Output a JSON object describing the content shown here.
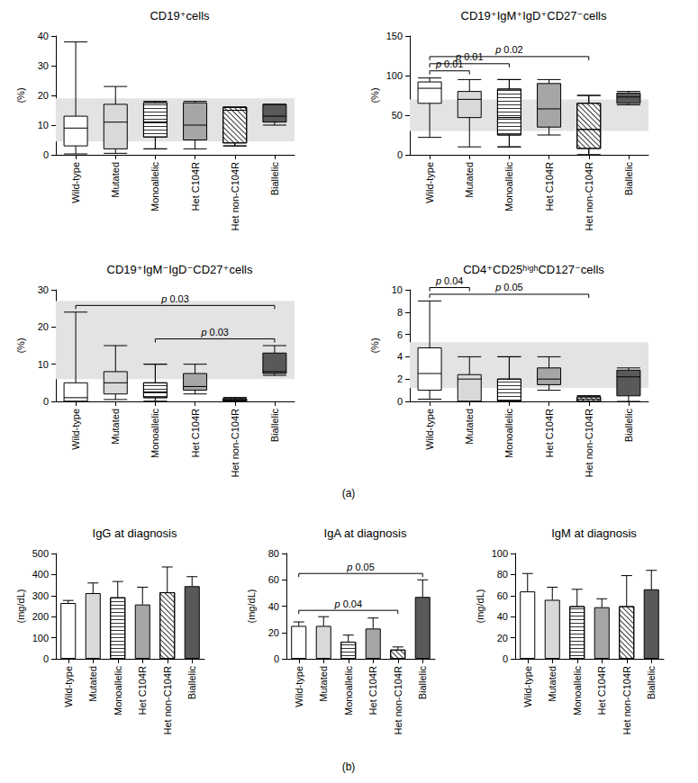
{
  "panel_labels": [
    "(a)",
    "(b)"
  ],
  "chart_data": [
    {
      "type": "boxplot",
      "title": "CD19⁺cells",
      "y_label": "(%)",
      "categories": [
        "Wild-type",
        "Mutated",
        "Monoallelic",
        "Het C104R",
        "Het non-C104R",
        "Biallelic"
      ],
      "colors": [
        "#ffffff",
        "#d9d9d9",
        "#ffffff",
        "#a6a6a6",
        "#ffffff",
        "#595959"
      ],
      "values": [
        [
          0.3,
          3,
          9,
          13,
          38
        ],
        [
          0.5,
          2,
          11,
          17,
          23
        ],
        [
          2,
          6,
          11,
          17.5,
          18
        ],
        [
          2,
          5,
          10,
          17.5,
          18
        ],
        [
          3,
          4,
          15,
          16,
          16
        ],
        [
          10,
          11,
          13,
          17,
          17
        ]
      ],
      "reference_range": [
        4.5,
        19
      ],
      "ylim": [
        0,
        40
      ],
      "yticks": [
        0,
        10,
        20,
        30,
        40
      ],
      "grid": false,
      "annotations": []
    },
    {
      "type": "boxplot",
      "title": "CD19⁺IgM⁺IgD⁺CD27⁻cells",
      "y_label": "(%)",
      "categories": [
        "Wild-type",
        "Mutated",
        "Monoallelic",
        "Het C104R",
        "Het non-C104R",
        "Biallelic"
      ],
      "colors": [
        "#ffffff",
        "#d9d9d9",
        "#ffffff",
        "#a6a6a6",
        "#ffffff",
        "#595959"
      ],
      "values": [
        [
          22,
          65,
          84,
          92,
          97
        ],
        [
          10,
          47,
          70,
          80,
          95
        ],
        [
          10,
          25,
          47,
          83,
          95
        ],
        [
          25,
          35,
          58,
          90,
          95
        ],
        [
          0,
          8,
          32,
          65,
          75
        ],
        [
          63,
          65,
          73,
          78,
          80
        ]
      ],
      "reference_range": [
        30,
        70
      ],
      "ylim": [
        0,
        150
      ],
      "yticks": [
        0,
        50,
        100,
        150
      ],
      "grid": false,
      "annotations": [
        {
          "text": "p 0.01",
          "from": "Wild-type",
          "to": "Mutated"
        },
        {
          "text": "p 0.01",
          "from": "Wild-type",
          "to": "Monoallelic"
        },
        {
          "text": "p 0.02",
          "from": "Wild-type",
          "to": "Het non-C104R"
        }
      ]
    },
    {
      "type": "boxplot",
      "title": "CD19⁺IgM⁻IgD⁻CD27⁺cells",
      "y_label": "(%)",
      "categories": [
        "Wild-type",
        "Mutated",
        "Monoallelic",
        "Het C104R",
        "Het non-C104R",
        "Biallelic"
      ],
      "colors": [
        "#ffffff",
        "#d9d9d9",
        "#ffffff",
        "#a6a6a6",
        "#ffffff",
        "#595959"
      ],
      "values": [
        [
          0,
          0,
          1,
          5,
          24
        ],
        [
          0.5,
          2,
          5,
          8,
          15
        ],
        [
          0,
          1,
          2.5,
          5,
          10
        ],
        [
          2,
          3,
          4,
          7.5,
          10
        ],
        [
          0,
          0,
          0.3,
          0.7,
          1
        ],
        [
          7,
          7.5,
          8,
          13,
          15
        ]
      ],
      "reference_range": [
        6,
        27
      ],
      "ylim": [
        0,
        30
      ],
      "yticks": [
        0,
        10,
        20,
        30
      ],
      "grid": false,
      "annotations": [
        {
          "text": "p 0.03",
          "from": "Monoallelic",
          "to": "Biallelic"
        },
        {
          "text": "p 0.03",
          "from": "Wild-type",
          "to": "Biallelic"
        }
      ]
    },
    {
      "type": "boxplot",
      "title": "CD4⁺CD25ʰⁱᵍʰCD127⁻cells",
      "y_label": "(%)",
      "categories": [
        "Wild-type",
        "Mutated",
        "Monoallelic",
        "Het C104R",
        "Het non-C104R",
        "Biallelic"
      ],
      "colors": [
        "#ffffff",
        "#d9d9d9",
        "#ffffff",
        "#a6a6a6",
        "#ffffff",
        "#595959"
      ],
      "values": [
        [
          0.2,
          1,
          2.5,
          4.8,
          9
        ],
        [
          0,
          0,
          2,
          2.4,
          4
        ],
        [
          0,
          0,
          0,
          2,
          4
        ],
        [
          1,
          1.5,
          2,
          3,
          4
        ],
        [
          0,
          0,
          0.2,
          0.4,
          0.5
        ],
        [
          0,
          0.5,
          2.2,
          2.8,
          3
        ]
      ],
      "reference_range": [
        1.2,
        5.3
      ],
      "ylim": [
        0,
        10
      ],
      "yticks": [
        0,
        2,
        4,
        6,
        8,
        10
      ],
      "grid": false,
      "annotations": [
        {
          "text": "p 0.05",
          "from": "Wild-type",
          "to": "Het non-C104R"
        },
        {
          "text": "p 0.04",
          "from": "Wild-type",
          "to": "Mutated"
        }
      ]
    },
    {
      "type": "bar",
      "title": "IgG at diagnosis",
      "y_label": "(mg/dL)",
      "categories": [
        "Wild-type",
        "Mutated",
        "Monoallelic",
        "Het C104R",
        "Het non-C104R",
        "Biallelic"
      ],
      "colors": [
        "#ffffff",
        "#d9d9d9",
        "#ffffff",
        "#a6a6a6",
        "#ffffff",
        "#595959"
      ],
      "values": [
        265,
        312,
        292,
        258,
        316,
        345
      ],
      "errors": [
        12,
        48,
        75,
        82,
        120,
        45
      ],
      "ylim": [
        0,
        500
      ],
      "yticks": [
        0,
        100,
        200,
        300,
        400,
        500
      ],
      "grid": false,
      "annotations": []
    },
    {
      "type": "bar",
      "title": "IgA at diagnosis",
      "y_label": "(mg/dL)",
      "categories": [
        "Wild-type",
        "Mutated",
        "Monoallelic",
        "Het C104R",
        "Het non-C104R",
        "Biallelic"
      ],
      "colors": [
        "#ffffff",
        "#d9d9d9",
        "#ffffff",
        "#a6a6a6",
        "#ffffff",
        "#595959"
      ],
      "values": [
        25,
        25,
        13,
        23,
        7,
        47
      ],
      "errors": [
        3,
        7,
        5,
        8,
        2,
        13
      ],
      "ylim": [
        0,
        80
      ],
      "yticks": [
        0,
        20,
        40,
        60,
        80
      ],
      "grid": false,
      "annotations": [
        {
          "text": "p 0.04",
          "from": "Wild-type",
          "to": "Het non-C104R"
        },
        {
          "text": "p 0.05",
          "from": "Wild-type",
          "to": "Biallelic"
        }
      ]
    },
    {
      "type": "bar",
      "title": "IgM at diagnosis",
      "y_label": "(mg/dL)",
      "categories": [
        "Wild-type",
        "Mutated",
        "Monoallelic",
        "Het C104R",
        "Het non-C104R",
        "Biallelic"
      ],
      "colors": [
        "#ffffff",
        "#d9d9d9",
        "#ffffff",
        "#a6a6a6",
        "#ffffff",
        "#595959"
      ],
      "values": [
        64,
        56,
        50,
        49,
        50,
        66
      ],
      "errors": [
        17,
        12,
        16,
        8,
        29,
        18
      ],
      "ylim": [
        0,
        100
      ],
      "yticks": [
        0,
        20,
        40,
        60,
        80,
        100
      ],
      "grid": false,
      "annotations": []
    }
  ]
}
